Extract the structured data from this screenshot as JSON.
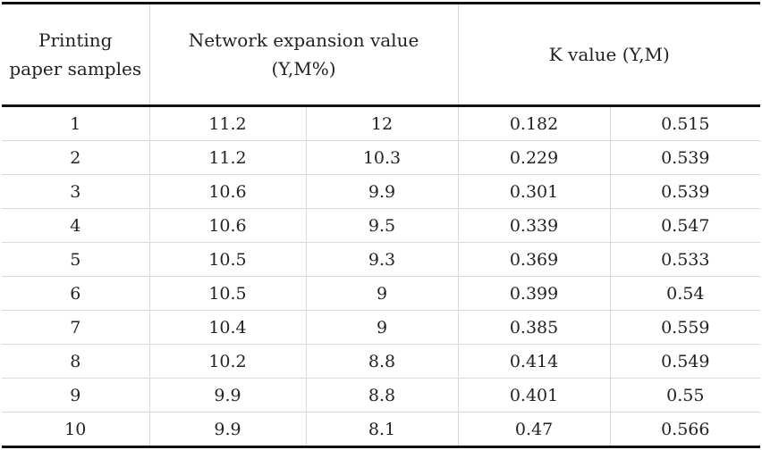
{
  "table": {
    "header": {
      "samples_line1": "Printing",
      "samples_line2": "paper samples",
      "network_line1": "Network expansion value",
      "network_line2": "(Y,M%)",
      "k_value": "K value (Y,M)"
    },
    "rows": [
      {
        "sample": "1",
        "net_y": "11.2",
        "net_m": "12",
        "k_y": "0.182",
        "k_m": "0.515"
      },
      {
        "sample": "2",
        "net_y": "11.2",
        "net_m": "10.3",
        "k_y": "0.229",
        "k_m": "0.539"
      },
      {
        "sample": "3",
        "net_y": "10.6",
        "net_m": "9.9",
        "k_y": "0.301",
        "k_m": "0.539"
      },
      {
        "sample": "4",
        "net_y": "10.6",
        "net_m": "9.5",
        "k_y": "0.339",
        "k_m": "0.547"
      },
      {
        "sample": "5",
        "net_y": "10.5",
        "net_m": "9.3",
        "k_y": "0.369",
        "k_m": "0.533"
      },
      {
        "sample": "6",
        "net_y": "10.5",
        "net_m": "9",
        "k_y": "0.399",
        "k_m": "0.54"
      },
      {
        "sample": "7",
        "net_y": "10.4",
        "net_m": "9",
        "k_y": "0.385",
        "k_m": "0.559"
      },
      {
        "sample": "8",
        "net_y": "10.2",
        "net_m": "8.8",
        "k_y": "0.414",
        "k_m": "0.549"
      },
      {
        "sample": "9",
        "net_y": "9.9",
        "net_m": "8.8",
        "k_y": "0.401",
        "k_m": "0.55"
      },
      {
        "sample": "10",
        "net_y": "9.9",
        "net_m": "8.1",
        "k_y": "0.47",
        "k_m": "0.566"
      }
    ]
  }
}
